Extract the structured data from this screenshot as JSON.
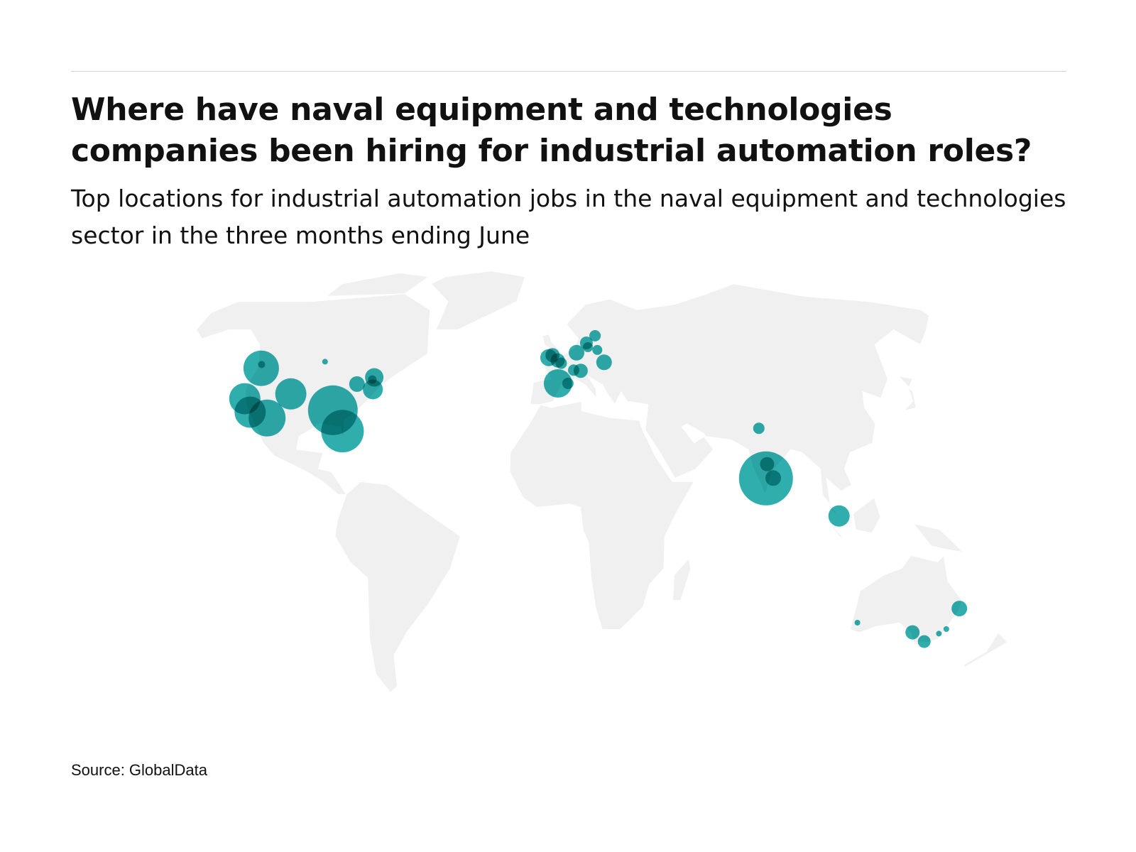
{
  "header": {
    "title": "Where have naval equipment and technologies companies been hiring for industrial automation roles?",
    "subtitle": "Top locations for industrial automation jobs in the naval equipment and technologies sector in the three months ending June"
  },
  "footer": {
    "source": "Source: GlobalData"
  },
  "chart_data": {
    "type": "bubble-map",
    "projection": "robinson",
    "land_color": "#f0f0f0",
    "bubble_color": "#13a3a3",
    "bubbles": [
      {
        "lon": -122.3,
        "lat": 47.4,
        "size": 25
      },
      {
        "lon": -123.1,
        "lat": 48.6,
        "size": 5
      },
      {
        "lon": -97.1,
        "lat": 49.5,
        "size": 4
      },
      {
        "lon": -122.4,
        "lat": 37.8,
        "size": 22
      },
      {
        "lon": -118.2,
        "lat": 33.6,
        "size": 22
      },
      {
        "lon": -110.9,
        "lat": 31.8,
        "size": 26
      },
      {
        "lon": -105.0,
        "lat": 39.3,
        "size": 22
      },
      {
        "lon": -86.4,
        "lat": 34.2,
        "size": 35
      },
      {
        "lon": -80.9,
        "lat": 27.7,
        "size": 30
      },
      {
        "lon": -80.1,
        "lat": 42.4,
        "size": 11
      },
      {
        "lon": -74.0,
        "lat": 44.5,
        "size": 13
      },
      {
        "lon": -73.0,
        "lat": 40.7,
        "size": 14
      },
      {
        "lon": -74.5,
        "lat": 43.8,
        "size": 6
      },
      {
        "lon": -3.0,
        "lat": 50.8,
        "size": 12
      },
      {
        "lon": -1.4,
        "lat": 51.6,
        "size": 10
      },
      {
        "lon": 0.8,
        "lat": 49.9,
        "size": 10
      },
      {
        "lon": 2.3,
        "lat": 49.0,
        "size": 8
      },
      {
        "lon": 0.9,
        "lat": 42.6,
        "size": 20
      },
      {
        "lon": 4.9,
        "lat": 42.6,
        "size": 8
      },
      {
        "lon": 8.9,
        "lat": 52.4,
        "size": 11
      },
      {
        "lon": 10.3,
        "lat": 46.6,
        "size": 10
      },
      {
        "lon": 7.4,
        "lat": 46.8,
        "size": 8
      },
      {
        "lon": 13.5,
        "lat": 55.6,
        "size": 9
      },
      {
        "lon": 14.0,
        "lat": 54.2,
        "size": 7
      },
      {
        "lon": 17.7,
        "lat": 58.0,
        "size": 8
      },
      {
        "lon": 18.0,
        "lat": 53.3,
        "size": 7
      },
      {
        "lon": 20.3,
        "lat": 49.3,
        "size": 11
      },
      {
        "lon": 77.2,
        "lat": 28.6,
        "size": 8
      },
      {
        "lon": 77.6,
        "lat": 13.0,
        "size": 38
      },
      {
        "lon": 78.5,
        "lat": 17.4,
        "size": 10
      },
      {
        "lon": 80.3,
        "lat": 13.1,
        "size": 11
      },
      {
        "lon": 103.8,
        "lat": 1.3,
        "size": 15
      },
      {
        "lon": 153.0,
        "lat": -27.5,
        "size": 11
      },
      {
        "lon": 115.9,
        "lat": -31.9,
        "size": 4
      },
      {
        "lon": 138.6,
        "lat": -34.9,
        "size": 10
      },
      {
        "lon": 145.0,
        "lat": -37.8,
        "size": 9
      },
      {
        "lon": 149.1,
        "lat": -35.3,
        "size": 4
      },
      {
        "lon": 151.2,
        "lat": -33.9,
        "size": 4
      }
    ]
  }
}
